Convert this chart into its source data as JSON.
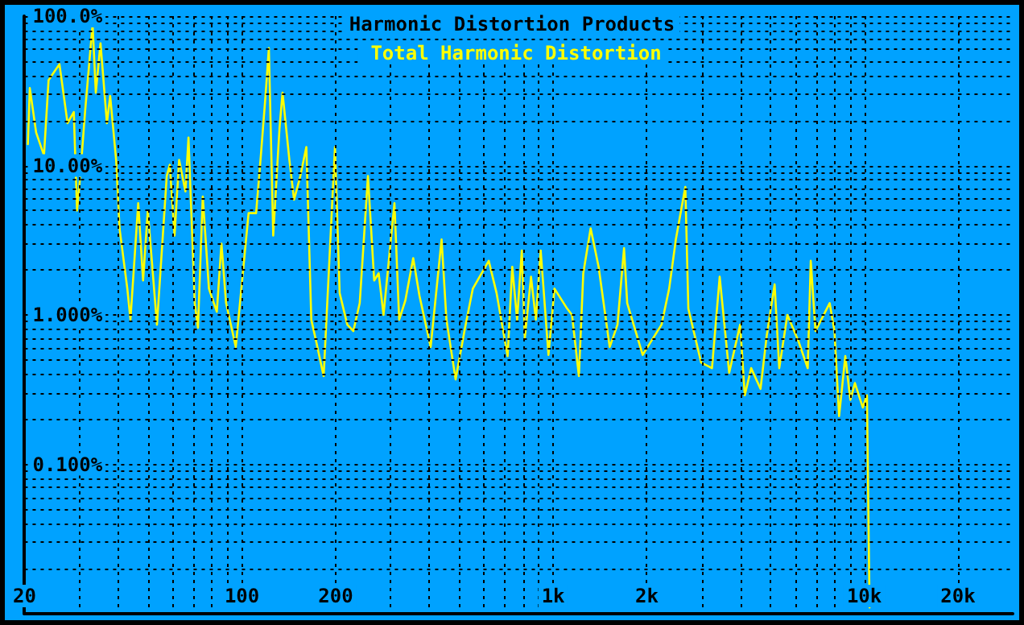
{
  "chart_data": {
    "type": "line",
    "title": "Harmonic Distortion Products",
    "log": "xy",
    "grid": true,
    "legend": "top",
    "marker": "none",
    "line_style": "solid",
    "xlim": [
      20,
      30000
    ],
    "ylim": [
      0.01,
      100
    ],
    "xticks": [
      {
        "value": 20,
        "label": "20"
      },
      {
        "value": 30,
        "label": null
      },
      {
        "value": 40,
        "label": null
      },
      {
        "value": 50,
        "label": null
      },
      {
        "value": 60,
        "label": null
      },
      {
        "value": 70,
        "label": null
      },
      {
        "value": 80,
        "label": null
      },
      {
        "value": 90,
        "label": null
      },
      {
        "value": 100,
        "label": "100"
      },
      {
        "value": 200,
        "label": "200"
      },
      {
        "value": 300,
        "label": null
      },
      {
        "value": 400,
        "label": null
      },
      {
        "value": 500,
        "label": null
      },
      {
        "value": 600,
        "label": null
      },
      {
        "value": 700,
        "label": null
      },
      {
        "value": 800,
        "label": null
      },
      {
        "value": 900,
        "label": null
      },
      {
        "value": 1000,
        "label": "1k"
      },
      {
        "value": 2000,
        "label": "2k"
      },
      {
        "value": 3000,
        "label": null
      },
      {
        "value": 4000,
        "label": null
      },
      {
        "value": 5000,
        "label": null
      },
      {
        "value": 6000,
        "label": null
      },
      {
        "value": 7000,
        "label": null
      },
      {
        "value": 8000,
        "label": null
      },
      {
        "value": 9000,
        "label": null
      },
      {
        "value": 10000,
        "label": "10k"
      },
      {
        "value": 20000,
        "label": "20k"
      }
    ],
    "yticks": [
      {
        "value": 0.02,
        "label": null
      },
      {
        "value": 0.03,
        "label": null
      },
      {
        "value": 0.04,
        "label": null
      },
      {
        "value": 0.05,
        "label": null
      },
      {
        "value": 0.06,
        "label": null
      },
      {
        "value": 0.07,
        "label": null
      },
      {
        "value": 0.08,
        "label": null
      },
      {
        "value": 0.09,
        "label": null
      },
      {
        "value": 0.1,
        "label": "0.100%"
      },
      {
        "value": 0.2,
        "label": null
      },
      {
        "value": 0.3,
        "label": null
      },
      {
        "value": 0.4,
        "label": null
      },
      {
        "value": 0.5,
        "label": null
      },
      {
        "value": 0.6,
        "label": null
      },
      {
        "value": 0.7,
        "label": null
      },
      {
        "value": 0.8,
        "label": null
      },
      {
        "value": 0.9,
        "label": null
      },
      {
        "value": 1,
        "label": "1.000%"
      },
      {
        "value": 2,
        "label": null
      },
      {
        "value": 3,
        "label": null
      },
      {
        "value": 4,
        "label": null
      },
      {
        "value": 5,
        "label": null
      },
      {
        "value": 6,
        "label": null
      },
      {
        "value": 7,
        "label": null
      },
      {
        "value": 8,
        "label": null
      },
      {
        "value": 9,
        "label": null
      },
      {
        "value": 10,
        "label": "10.00%"
      },
      {
        "value": 20,
        "label": null
      },
      {
        "value": 30,
        "label": null
      },
      {
        "value": 40,
        "label": null
      },
      {
        "value": 50,
        "label": null
      },
      {
        "value": 60,
        "label": null
      },
      {
        "value": 70,
        "label": null
      },
      {
        "value": 80,
        "label": null
      },
      {
        "value": 90,
        "label": null
      },
      {
        "value": 100,
        "label": "100.0%"
      }
    ],
    "series": [
      {
        "name": "Total Harmonic Distortion",
        "color": "#ffff00",
        "x": [
          20.5,
          20.8,
          21.8,
          23.1,
          23.9,
          25.9,
          27.5,
          28.8,
          29.5,
          30.2,
          31.3,
          33.1,
          33.9,
          35.1,
          36.8,
          37.7,
          39.4,
          40.4,
          42.8,
          43.8,
          46.4,
          48.1,
          49.8,
          53.3,
          57.3,
          58.6,
          60.7,
          62.8,
          65.8,
          67.3,
          70.5,
          72.2,
          74.8,
          78.3,
          83.0,
          85.9,
          88.9,
          95.5,
          105,
          111,
          115,
          119,
          122,
          126,
          132,
          135,
          142,
          147,
          154,
          161,
          167,
          173,
          183,
          199,
          206,
          218,
          228,
          239,
          254,
          266,
          275,
          285,
          309,
          320,
          335,
          355,
          372,
          404,
          438,
          454,
          486,
          521,
          552,
          621,
          658,
          714,
          739,
          766,
          793,
          811,
          849,
          880,
          912,
          966,
          1010,
          1110,
          1150,
          1210,
          1250,
          1320,
          1400,
          1520,
          1610,
          1690,
          1730,
          1940,
          2230,
          2360,
          2480,
          2660,
          2720,
          2990,
          3240,
          3430,
          3680,
          3990,
          4130,
          4330,
          4640,
          4860,
          5150,
          5330,
          5660,
          6140,
          6580,
          6730,
          6970,
          7740,
          8020,
          8300,
          8690,
          9020,
          9330,
          9890,
          10200,
          10300,
          10400
        ],
        "values": [
          13.9,
          33,
          16.6,
          11.7,
          37.3,
          47.7,
          19.2,
          22.8,
          5.0,
          8.5,
          22.8,
          88,
          30.7,
          65.8,
          19.2,
          29.2,
          10.9,
          3.8,
          1.5,
          0.93,
          5.6,
          1.7,
          5.0,
          0.86,
          8.5,
          10.1,
          3.4,
          10.9,
          6.7,
          15.4,
          1.2,
          0.82,
          6.2,
          1.5,
          1.05,
          3.0,
          1.2,
          0.61,
          4.8,
          4.8,
          11.7,
          29.2,
          61,
          3.4,
          17.8,
          30.7,
          10.9,
          5.9,
          8.5,
          13.3,
          0.93,
          0.67,
          0.39,
          13.3,
          1.4,
          0.86,
          0.78,
          1.2,
          8.5,
          1.7,
          1.9,
          1.0,
          5.6,
          0.93,
          1.25,
          2.4,
          1.34,
          0.61,
          3.2,
          0.93,
          0.37,
          0.82,
          1.5,
          2.3,
          1.4,
          0.53,
          2.1,
          0.93,
          2.7,
          0.7,
          1.8,
          0.93,
          2.7,
          0.54,
          1.5,
          1.1,
          1.0,
          0.39,
          1.9,
          3.8,
          2.1,
          0.61,
          0.86,
          2.8,
          1.2,
          0.54,
          0.86,
          1.5,
          3.2,
          7.2,
          1.1,
          0.48,
          0.44,
          1.8,
          0.41,
          0.86,
          0.29,
          0.44,
          0.32,
          0.73,
          1.6,
          0.44,
          1.0,
          0.67,
          0.44,
          2.3,
          0.78,
          1.2,
          0.78,
          0.21,
          0.53,
          0.27,
          0.35,
          0.24,
          0.29,
          0.055,
          0.011
        ]
      }
    ]
  }
}
